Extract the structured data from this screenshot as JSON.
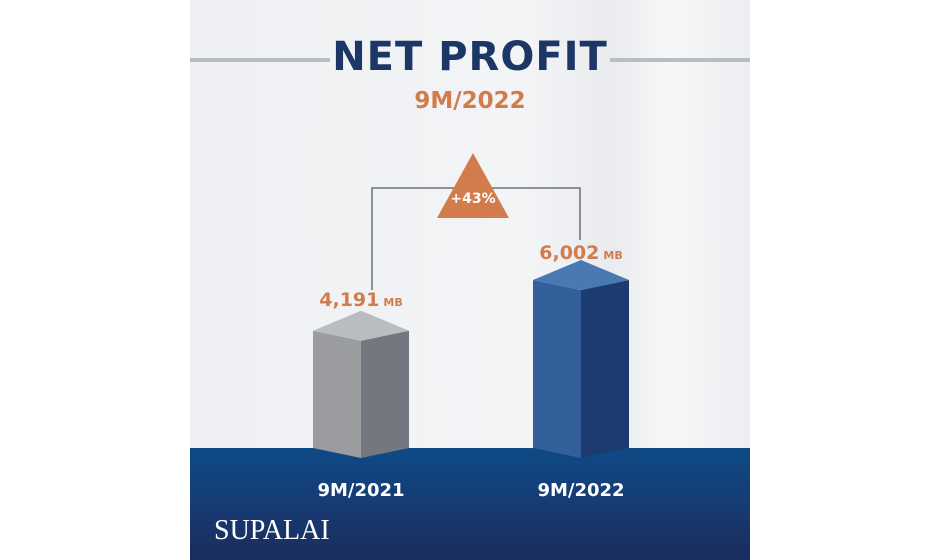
{
  "chart_data": {
    "type": "bar",
    "title": "NET PROFIT",
    "subtitle": "9M/2022",
    "categories": [
      "9M/2021",
      "9M/2022"
    ],
    "values": [
      4191,
      6002
    ],
    "value_labels": [
      "4,191",
      "6,002"
    ],
    "unit": "MB",
    "change_label": "+43%",
    "colors": {
      "bar_2021": "#8e9196",
      "bar_2022": "#2f5a96",
      "accent": "#d27c4c",
      "title": "#1c3766"
    }
  },
  "brand": {
    "logo_text": "SUPALAI"
  }
}
